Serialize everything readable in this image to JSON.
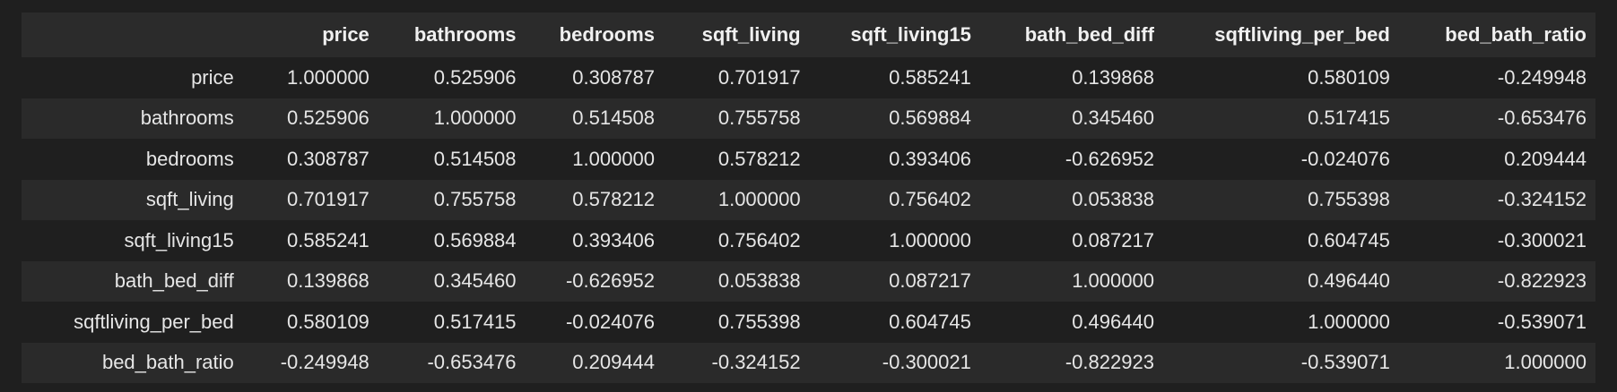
{
  "table": {
    "columns": [
      "",
      "price",
      "bathrooms",
      "bedrooms",
      "sqft_living",
      "sqft_living15",
      "bath_bed_diff",
      "sqftliving_per_bed",
      "bed_bath_ratio"
    ],
    "rows": [
      {
        "label": "price",
        "values": [
          "1.000000",
          "0.525906",
          "0.308787",
          "0.701917",
          "0.585241",
          "0.139868",
          "0.580109",
          "-0.249948"
        ]
      },
      {
        "label": "bathrooms",
        "values": [
          "0.525906",
          "1.000000",
          "0.514508",
          "0.755758",
          "0.569884",
          "0.345460",
          "0.517415",
          "-0.653476"
        ]
      },
      {
        "label": "bedrooms",
        "values": [
          "0.308787",
          "0.514508",
          "1.000000",
          "0.578212",
          "0.393406",
          "-0.626952",
          "-0.024076",
          "0.209444"
        ]
      },
      {
        "label": "sqft_living",
        "values": [
          "0.701917",
          "0.755758",
          "0.578212",
          "1.000000",
          "0.756402",
          "0.053838",
          "0.755398",
          "-0.324152"
        ]
      },
      {
        "label": "sqft_living15",
        "values": [
          "0.585241",
          "0.569884",
          "0.393406",
          "0.756402",
          "1.000000",
          "0.087217",
          "0.604745",
          "-0.300021"
        ]
      },
      {
        "label": "bath_bed_diff",
        "values": [
          "0.139868",
          "0.345460",
          "-0.626952",
          "0.053838",
          "0.087217",
          "1.000000",
          "0.496440",
          "-0.822923"
        ]
      },
      {
        "label": "sqftliving_per_bed",
        "values": [
          "0.580109",
          "0.517415",
          "-0.024076",
          "0.755398",
          "0.604745",
          "0.496440",
          "1.000000",
          "-0.539071"
        ]
      },
      {
        "label": "bed_bath_ratio",
        "values": [
          "-0.249948",
          "-0.653476",
          "0.209444",
          "-0.324152",
          "-0.300021",
          "-0.822923",
          "-0.539071",
          "1.000000"
        ]
      }
    ]
  }
}
